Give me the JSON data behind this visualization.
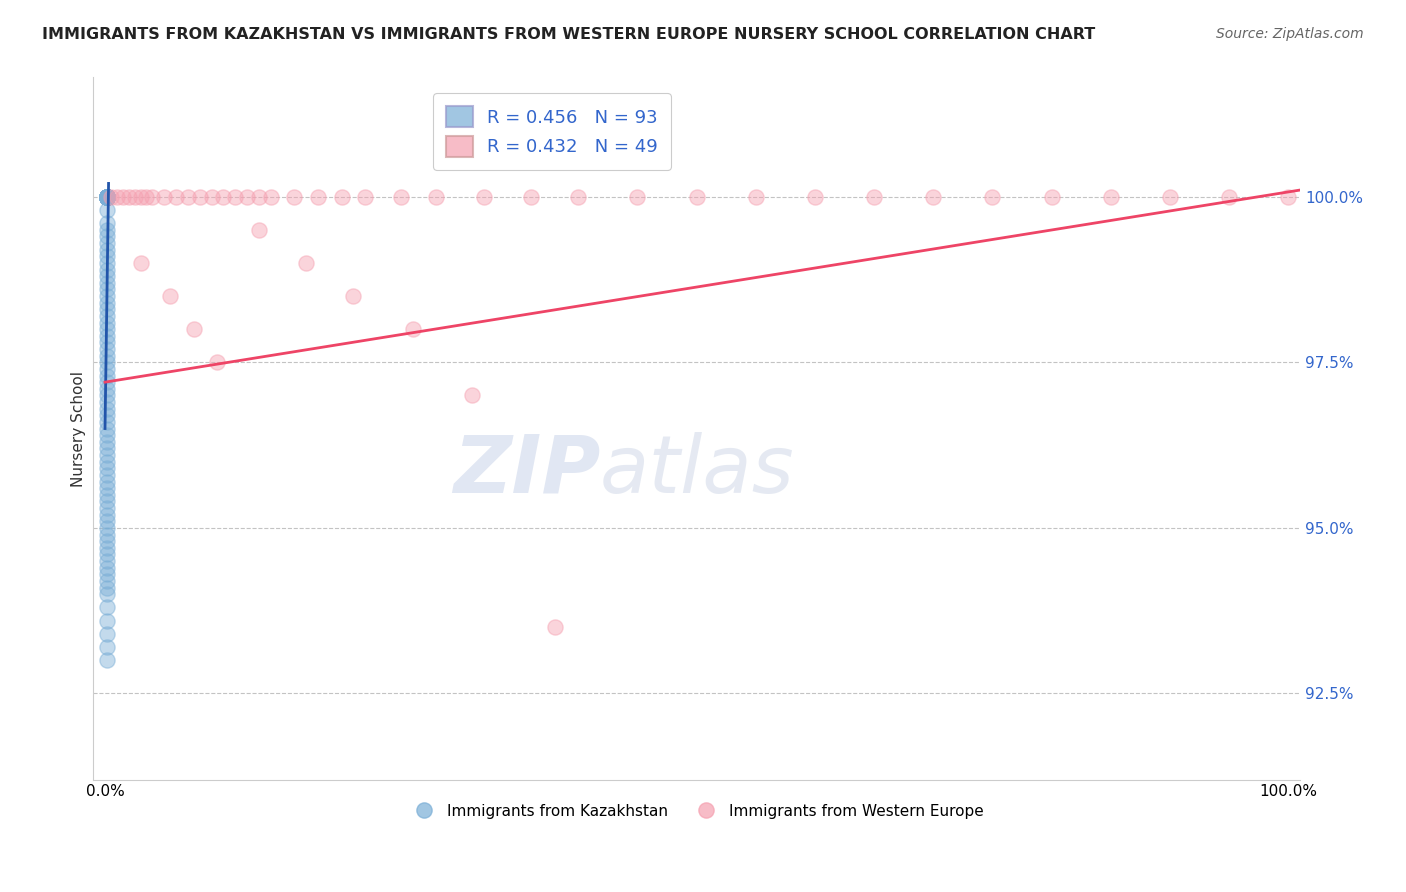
{
  "title": "IMMIGRANTS FROM KAZAKHSTAN VS IMMIGRANTS FROM WESTERN EUROPE NURSERY SCHOOL CORRELATION CHART",
  "source": "Source: ZipAtlas.com",
  "ylabel": "Nursery School",
  "xlabel": "",
  "blue_label": "Immigrants from Kazakhstan",
  "pink_label": "Immigrants from Western Europe",
  "blue_R": 0.456,
  "blue_N": 93,
  "pink_R": 0.432,
  "pink_N": 49,
  "blue_color": "#7aaed6",
  "pink_color": "#f5a0b0",
  "blue_line_color": "#2255aa",
  "pink_line_color": "#ee4466",
  "xlim": [
    -0.01,
    1.01
  ],
  "ylim": [
    91.2,
    101.8
  ],
  "yticks": [
    92.5,
    95.0,
    97.5,
    100.0
  ],
  "ytick_labels": [
    "92.5%",
    "95.0%",
    "97.5%",
    "100.0%"
  ],
  "xtick_positions": [
    0.0,
    1.0
  ],
  "xtick_labels": [
    "0.0%",
    "100.0%"
  ],
  "watermark_zip": "ZIP",
  "watermark_atlas": "atlas",
  "blue_x": [
    0.002,
    0.002,
    0.002,
    0.002,
    0.002,
    0.002,
    0.002,
    0.002,
    0.002,
    0.002,
    0.002,
    0.002,
    0.002,
    0.002,
    0.002,
    0.002,
    0.002,
    0.002,
    0.002,
    0.002,
    0.002,
    0.002,
    0.002,
    0.002,
    0.002,
    0.002,
    0.002,
    0.002,
    0.002,
    0.002,
    0.002,
    0.002,
    0.002,
    0.002,
    0.002,
    0.002,
    0.002,
    0.002,
    0.002,
    0.002,
    0.002,
    0.002,
    0.002,
    0.002,
    0.002,
    0.002,
    0.002,
    0.002,
    0.002,
    0.002,
    0.002,
    0.002,
    0.002,
    0.002,
    0.002,
    0.002,
    0.002,
    0.002,
    0.002,
    0.002,
    0.002,
    0.002,
    0.002,
    0.002,
    0.002,
    0.002,
    0.002,
    0.002,
    0.002,
    0.002,
    0.002,
    0.002,
    0.002,
    0.002,
    0.002,
    0.002,
    0.002,
    0.002,
    0.002,
    0.002,
    0.002,
    0.002,
    0.002,
    0.002,
    0.002,
    0.002,
    0.002,
    0.002,
    0.002,
    0.002,
    0.002,
    0.002,
    0.002
  ],
  "blue_y": [
    100.0,
    100.0,
    100.0,
    100.0,
    100.0,
    100.0,
    100.0,
    100.0,
    100.0,
    100.0,
    100.0,
    100.0,
    100.0,
    100.0,
    100.0,
    100.0,
    100.0,
    100.0,
    100.0,
    100.0,
    100.0,
    100.0,
    100.0,
    100.0,
    100.0,
    100.0,
    100.0,
    100.0,
    100.0,
    100.0,
    99.8,
    99.6,
    99.4,
    99.2,
    99.0,
    98.8,
    98.6,
    98.4,
    98.2,
    98.0,
    97.8,
    97.6,
    97.4,
    97.2,
    97.0,
    96.8,
    96.6,
    96.4,
    96.2,
    96.0,
    95.8,
    95.6,
    95.4,
    95.2,
    95.0,
    94.8,
    94.6,
    94.4,
    94.2,
    94.0,
    93.8,
    93.6,
    93.4,
    93.2,
    93.0,
    99.5,
    99.3,
    99.1,
    98.9,
    98.7,
    98.5,
    98.3,
    98.1,
    97.9,
    97.7,
    97.5,
    97.3,
    97.1,
    96.9,
    96.7,
    96.5,
    96.3,
    96.1,
    95.9,
    95.7,
    95.5,
    95.3,
    95.1,
    94.9,
    94.7,
    94.5,
    94.3,
    94.1
  ],
  "pink_x": [
    0.005,
    0.01,
    0.015,
    0.02,
    0.025,
    0.03,
    0.035,
    0.04,
    0.05,
    0.06,
    0.07,
    0.08,
    0.09,
    0.1,
    0.11,
    0.12,
    0.13,
    0.14,
    0.16,
    0.18,
    0.2,
    0.22,
    0.25,
    0.28,
    0.32,
    0.36,
    0.4,
    0.45,
    0.5,
    0.55,
    0.6,
    0.65,
    0.7,
    0.75,
    0.8,
    0.85,
    0.9,
    0.95,
    1.0,
    0.03,
    0.055,
    0.075,
    0.095,
    0.13,
    0.17,
    0.21,
    0.26,
    0.31,
    0.38
  ],
  "pink_y": [
    100.0,
    100.0,
    100.0,
    100.0,
    100.0,
    100.0,
    100.0,
    100.0,
    100.0,
    100.0,
    100.0,
    100.0,
    100.0,
    100.0,
    100.0,
    100.0,
    100.0,
    100.0,
    100.0,
    100.0,
    100.0,
    100.0,
    100.0,
    100.0,
    100.0,
    100.0,
    100.0,
    100.0,
    100.0,
    100.0,
    100.0,
    100.0,
    100.0,
    100.0,
    100.0,
    100.0,
    100.0,
    100.0,
    100.0,
    99.0,
    98.5,
    98.0,
    97.5,
    99.5,
    99.0,
    98.5,
    98.0,
    97.0,
    93.5
  ]
}
